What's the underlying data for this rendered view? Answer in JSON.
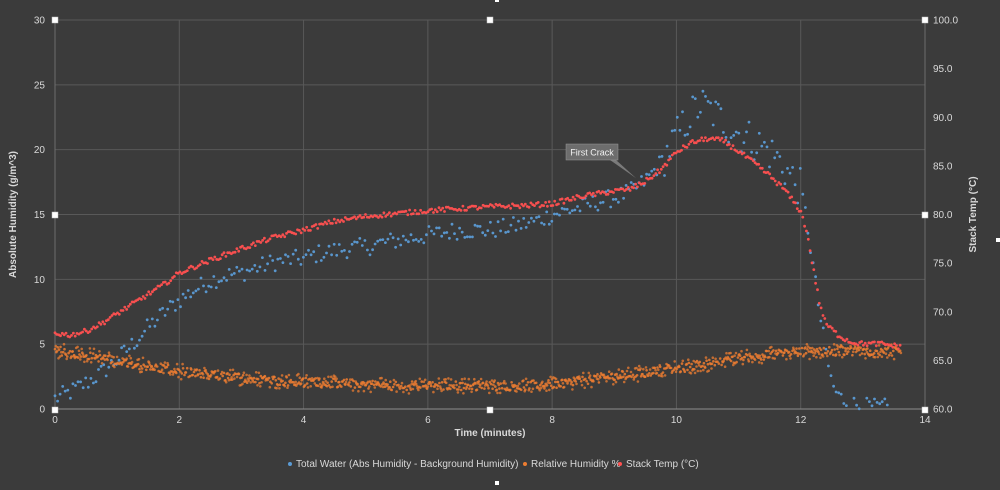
{
  "chart_data": {
    "type": "scatter",
    "xlabel": "Time (minutes)",
    "ylabel_left": "Absolute Humidity (g/m^3)",
    "ylabel_right": "Stack Temp (°C)",
    "xlim": [
      0,
      14
    ],
    "ylim_left": [
      0,
      30
    ],
    "ylim_right": [
      60,
      100
    ],
    "x_ticks": [
      "0",
      "2",
      "4",
      "6",
      "8",
      "10",
      "12",
      "14"
    ],
    "y_left_ticks": [
      "0",
      "5",
      "10",
      "15",
      "20",
      "25",
      "30"
    ],
    "y_right_ticks": [
      "60.0",
      "65.0",
      "70.0",
      "75.0",
      "80.0",
      "85.0",
      "90.0",
      "95.0",
      "100.0"
    ],
    "grid": true,
    "legend_position": "bottom",
    "colors": {
      "total_water": "#5b9bd5",
      "relative_humidity": "#ed7d31",
      "stack_temp": "#ff5050"
    },
    "annotation": {
      "text": "First Crack",
      "x": 9.35,
      "y": 17.8
    },
    "series": [
      {
        "name": "Total Water (Abs Humidity - Background Humidity)",
        "axis": "left",
        "color": "#5b9bd5",
        "x": [
          0,
          0.25,
          0.5,
          0.75,
          1.0,
          1.25,
          1.5,
          1.75,
          2.0,
          2.25,
          2.5,
          2.75,
          3.0,
          3.25,
          3.5,
          3.75,
          4.0,
          4.25,
          4.5,
          4.75,
          5.0,
          5.25,
          5.5,
          5.75,
          6.0,
          6.25,
          6.5,
          6.75,
          7.0,
          7.25,
          7.5,
          7.75,
          8.0,
          8.25,
          8.5,
          8.75,
          9.0,
          9.25,
          9.5,
          9.75,
          10.0,
          10.2,
          10.4,
          10.6,
          10.8,
          11.0,
          11.2,
          11.4,
          11.6,
          11.8,
          12.0,
          12.1,
          12.2,
          12.3,
          12.4,
          12.5,
          12.6,
          12.8,
          13.0,
          13.2,
          13.4
        ],
        "values": [
          0.8,
          1.3,
          2.0,
          2.8,
          3.8,
          5.0,
          6.3,
          7.4,
          8.4,
          9.2,
          9.9,
          10.3,
          10.5,
          10.9,
          11.3,
          11.5,
          11.6,
          12.0,
          12.2,
          12.4,
          12.5,
          12.8,
          13.0,
          13.2,
          13.4,
          13.6,
          13.8,
          13.8,
          13.8,
          14.0,
          14.2,
          14.5,
          15.0,
          15.3,
          15.6,
          16.0,
          16.3,
          16.7,
          17.6,
          19.0,
          21.0,
          22.5,
          23.5,
          22.8,
          22.0,
          21.3,
          20.8,
          20.2,
          19.5,
          18.2,
          17.0,
          14.5,
          11.0,
          7.5,
          4.5,
          2.0,
          1.0,
          0.4,
          0.2,
          0.1,
          0.1
        ]
      },
      {
        "name": "Relative Humidity %",
        "axis": "left",
        "color": "#ed7d31",
        "x": [
          0,
          0.5,
          1.0,
          1.5,
          2.0,
          2.5,
          3.0,
          3.5,
          4.0,
          4.5,
          5.0,
          5.5,
          6.0,
          6.5,
          7.0,
          7.5,
          8.0,
          8.5,
          9.0,
          9.5,
          10.0,
          10.5,
          11.0,
          11.5,
          12.0,
          12.5,
          13.0,
          13.6
        ],
        "values": [
          4.5,
          4.2,
          3.7,
          3.3,
          2.9,
          2.6,
          2.4,
          2.2,
          2.1,
          2.0,
          1.9,
          1.8,
          1.8,
          1.8,
          1.8,
          1.8,
          1.9,
          2.2,
          2.5,
          2.8,
          3.1,
          3.5,
          3.9,
          4.2,
          4.4,
          4.5,
          4.5,
          4.4
        ]
      },
      {
        "name": "Stack Temp (°C)",
        "axis": "right",
        "color": "#ff5050",
        "x": [
          0,
          0.25,
          0.5,
          0.75,
          1.0,
          1.25,
          1.5,
          1.75,
          2.0,
          2.5,
          3.0,
          3.5,
          4.0,
          4.5,
          5.0,
          5.5,
          6.0,
          6.5,
          7.0,
          7.5,
          8.0,
          8.5,
          9.0,
          9.25,
          9.5,
          9.75,
          10.0,
          10.25,
          10.5,
          10.75,
          11.0,
          11.25,
          11.5,
          11.75,
          12.0,
          12.1,
          12.2,
          12.3,
          12.4,
          12.6,
          12.8,
          13.0,
          13.3,
          13.6
        ],
        "values": [
          67.8,
          67.6,
          68.0,
          68.8,
          69.8,
          70.8,
          71.8,
          72.8,
          74.0,
          75.3,
          76.5,
          77.6,
          78.4,
          79.3,
          79.8,
          80.1,
          80.4,
          80.6,
          80.8,
          80.9,
          81.1,
          81.9,
          82.4,
          82.6,
          83.4,
          84.6,
          86.4,
          87.4,
          87.8,
          87.6,
          86.5,
          85.3,
          84.0,
          82.5,
          80.3,
          78.2,
          74.5,
          71.0,
          68.8,
          67.6,
          66.9,
          66.7,
          66.7,
          66.4
        ]
      }
    ]
  }
}
